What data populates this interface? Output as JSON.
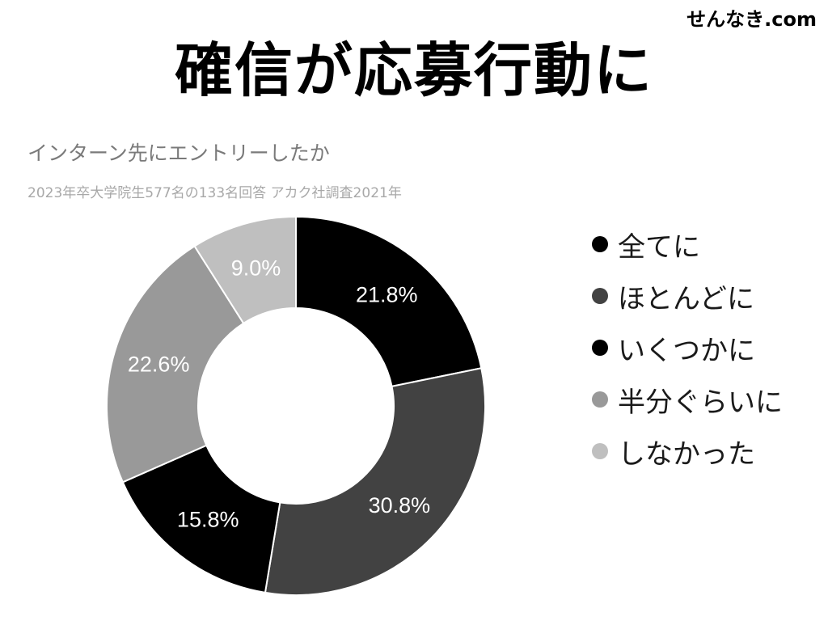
{
  "site_name": "せんなき.com",
  "main_title": "確信が応募行動に",
  "chart_data": {
    "type": "pie",
    "donut": true,
    "title": "インターン先にエントリーしたか",
    "subtitle": "2023年卒大学院生577名の133名回答 アカク社調査2021年",
    "legend_position": "right",
    "slices": [
      {
        "label": "全てに",
        "value": 21.8,
        "display": "21.8%",
        "color": "#000000",
        "text_color": "#ffffff"
      },
      {
        "label": "ほとんどに",
        "value": 30.8,
        "display": "30.8%",
        "color": "#424242",
        "text_color": "#ffffff"
      },
      {
        "label": "いくつかに",
        "value": 15.8,
        "display": "15.8%",
        "color": "#000000",
        "text_color": "#ffffff"
      },
      {
        "label": "半分ぐらいに",
        "value": 22.6,
        "display": "22.6%",
        "color": "#999999",
        "text_color": "#ffffff"
      },
      {
        "label": "しなかった",
        "value": 9.0,
        "display": "9.0%",
        "color": "#bfbfbf",
        "text_color": "#ffffff"
      }
    ]
  }
}
